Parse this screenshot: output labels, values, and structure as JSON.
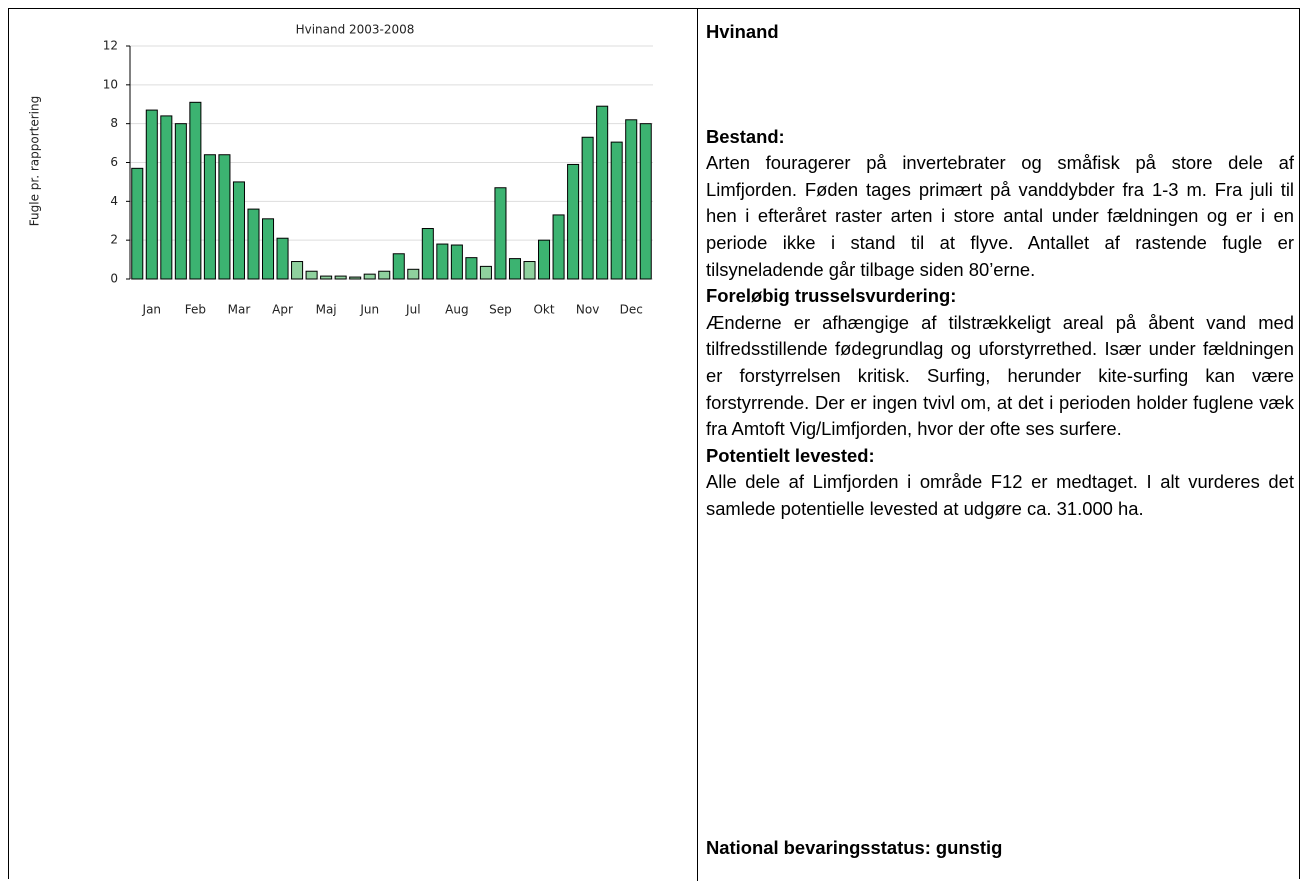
{
  "chart_data": {
    "type": "bar",
    "title": "Hvinand 2003-2008",
    "y_label": "Fugle pr. rapportering",
    "categories": [
      null,
      "Jan",
      null,
      null,
      "Feb",
      null,
      null,
      "Mar",
      null,
      null,
      "Apr",
      null,
      null,
      "Maj",
      null,
      null,
      "Jun",
      null,
      null,
      "Jul",
      null,
      null,
      "Aug",
      null,
      null,
      "Sep",
      null,
      null,
      "Okt",
      null,
      null,
      "Nov",
      null,
      null,
      "Dec",
      null
    ],
    "values": [
      5.7,
      8.7,
      8.4,
      8.0,
      9.1,
      6.4,
      6.4,
      5.0,
      3.6,
      3.1,
      2.1,
      0.9,
      0.4,
      0.15,
      0.15,
      0.1,
      0.25,
      0.4,
      1.3,
      0.5,
      2.6,
      1.8,
      1.75,
      1.1,
      0.65,
      4.7,
      1.05,
      0.9,
      2.0,
      3.3,
      5.9,
      7.3,
      8.9,
      7.05,
      8.2,
      8.0
    ],
    "colors": [
      "#3cb371",
      "#3cb371",
      "#3cb371",
      "#3cb371",
      "#3cb371",
      "#3cb371",
      "#3cb371",
      "#3cb371",
      "#3cb371",
      "#3cb371",
      "#3cb371",
      "#8fd19e",
      "#8fd19e",
      "#8fd19e",
      "#8fd19e",
      "#8fd19e",
      "#8fd19e",
      "#8fd19e",
      "#3cb371",
      "#8fd19e",
      "#3cb371",
      "#3cb371",
      "#3cb371",
      "#3cb371",
      "#8fd19e",
      "#3cb371",
      "#3cb371",
      "#8fd19e",
      "#3cb371",
      "#3cb371",
      "#3cb371",
      "#3cb371",
      "#3cb371",
      "#3cb371",
      "#3cb371",
      "#3cb371"
    ],
    "ylim": [
      0,
      12
    ],
    "yticks": [
      0,
      2,
      4,
      6,
      8,
      10,
      12
    ],
    "grid": true
  },
  "text": {
    "title": "Hvinand",
    "sections": [
      {
        "heading": "Bestand:",
        "body": "Arten fouragerer på invertebrater og småfisk på store dele af Limfjorden. Føden tages primært på vanddybder fra 1-3 m. Fra juli til hen i efteråret raster arten i store antal under fældningen og er i en periode ikke i stand til at flyve. Antallet af ra­stende fugle er tilsyneladende går tilbage siden 80’erne."
      },
      {
        "heading": "Foreløbig trusselsvurdering:",
        "body": "Ænderne er afhængige af tilstrækkeligt areal på åbent vand med tilfredsstillende fødegrundlag og uforstyrrethed. Især under fældningen er forstyr­relsen kritisk. Surfing, herunder kite-surfing kan være forstyrrende. Der er ingen tvivl om, at det i perioden holder fuglene væk fra Amtoft Vig/Limfjorden, hvor der ofte ses surfere."
      },
      {
        "heading": "Potentielt levested:",
        "body": "Alle dele af Limfjorden i område F12 er medtaget. I alt vurderes det samlede potentielle levested at udgøre ca. 31.000 ha."
      }
    ],
    "status": "National bevaringsstatus: gunstig"
  }
}
